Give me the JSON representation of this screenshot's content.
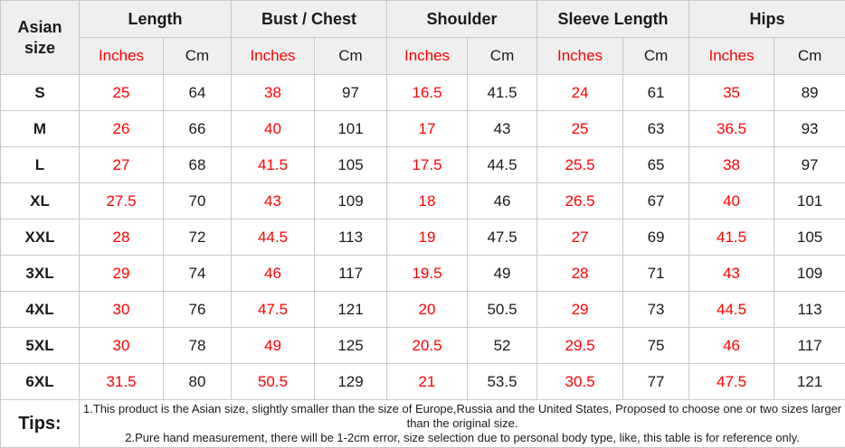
{
  "table": {
    "corner_header": "Asian size",
    "groups": [
      {
        "label": "Length"
      },
      {
        "label": "Bust / Chest"
      },
      {
        "label": "Shoulder"
      },
      {
        "label": "Sleeve Length"
      },
      {
        "label": "Hips"
      }
    ],
    "unit_headers": [
      "Inches",
      "Cm"
    ],
    "rows": [
      {
        "size": "S",
        "values": [
          "25",
          "64",
          "38",
          "97",
          "16.5",
          "41.5",
          "24",
          "61",
          "35",
          "89"
        ]
      },
      {
        "size": "M",
        "values": [
          "26",
          "66",
          "40",
          "101",
          "17",
          "43",
          "25",
          "63",
          "36.5",
          "93"
        ]
      },
      {
        "size": "L",
        "values": [
          "27",
          "68",
          "41.5",
          "105",
          "17.5",
          "44.5",
          "25.5",
          "65",
          "38",
          "97"
        ]
      },
      {
        "size": "XL",
        "values": [
          "27.5",
          "70",
          "43",
          "109",
          "18",
          "46",
          "26.5",
          "67",
          "40",
          "101"
        ]
      },
      {
        "size": "XXL",
        "values": [
          "28",
          "72",
          "44.5",
          "113",
          "19",
          "47.5",
          "27",
          "69",
          "41.5",
          "105"
        ]
      },
      {
        "size": "3XL",
        "values": [
          "29",
          "74",
          "46",
          "117",
          "19.5",
          "49",
          "28",
          "71",
          "43",
          "109"
        ]
      },
      {
        "size": "4XL",
        "values": [
          "30",
          "76",
          "47.5",
          "121",
          "20",
          "50.5",
          "29",
          "73",
          "44.5",
          "113"
        ]
      },
      {
        "size": "5XL",
        "values": [
          "30",
          "78",
          "49",
          "125",
          "20.5",
          "52",
          "29.5",
          "75",
          "46",
          "117"
        ]
      },
      {
        "size": "6XL",
        "values": [
          "31.5",
          "80",
          "50.5",
          "129",
          "21",
          "53.5",
          "30.5",
          "77",
          "47.5",
          "121"
        ]
      }
    ],
    "tips": {
      "label": "Tips:",
      "lines": [
        "1.This product is the Asian size, slightly smaller than the size of Europe,Russia and the United States, Proposed to choose one or two sizes larger than the original size.",
        "2.Pure hand measurement, there will be 1-2cm error, size selection due to personal body type, like, this table is for reference only."
      ]
    },
    "colors": {
      "inches_text": "#ff0000",
      "cm_text": "#1a1a1a",
      "header_bg": "#efefef",
      "border": "#c9c9c9",
      "row_bg": "#ffffff"
    }
  }
}
